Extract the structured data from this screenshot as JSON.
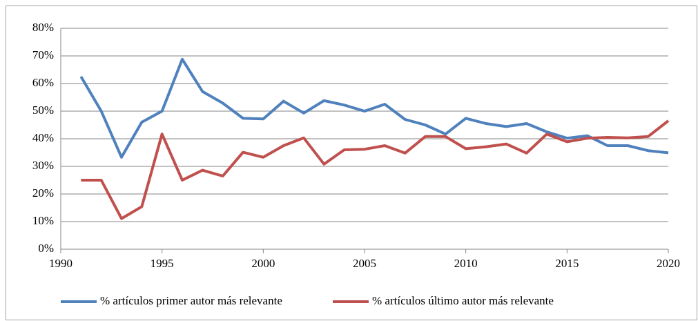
{
  "chart_data": {
    "type": "line",
    "x": [
      1991,
      1992,
      1993,
      1994,
      1995,
      1996,
      1997,
      1998,
      1999,
      2000,
      2001,
      2002,
      2003,
      2004,
      2005,
      2006,
      2007,
      2008,
      2009,
      2010,
      2011,
      2012,
      2013,
      2014,
      2015,
      2016,
      2017,
      2018,
      2019,
      2020
    ],
    "series": [
      {
        "name": "% artículos primer autor más relevante",
        "color": "#4f81bd",
        "values": [
          62.5,
          50,
          33.3,
          46,
          50,
          68.8,
          57.1,
          52.9,
          47.4,
          47.2,
          53.6,
          49.3,
          53.8,
          52.2,
          50,
          52.5,
          47,
          45,
          41.7,
          47.4,
          45.5,
          44.4,
          45.5,
          42.5,
          40.2,
          41.1,
          37.5,
          37.5,
          35.7,
          34.9
        ]
      },
      {
        "name": "% artículos último autor más relevante",
        "color": "#c0504d",
        "values": [
          25,
          25,
          11.1,
          15.4,
          41.7,
          25,
          28.6,
          26.5,
          35.1,
          33.3,
          37.5,
          40.3,
          30.8,
          36,
          36.2,
          37.5,
          34.8,
          40.8,
          40.8,
          36.4,
          37.1,
          38.1,
          34.8,
          41.7,
          38.9,
          40.2,
          40.5,
          40.3,
          40.8,
          46.5
        ]
      }
    ],
    "xlim": [
      1990,
      2020
    ],
    "xticks": [
      1990,
      1995,
      2000,
      2005,
      2010,
      2015,
      2020
    ],
    "ylim": [
      0,
      80
    ],
    "yticks": [
      {
        "value": 0,
        "label": "0%"
      },
      {
        "value": 10,
        "label": "10%"
      },
      {
        "value": 20,
        "label": "20%"
      },
      {
        "value": 30,
        "label": "30%"
      },
      {
        "value": 40,
        "label": "40%"
      },
      {
        "value": 50,
        "label": "50%"
      },
      {
        "value": 60,
        "label": "60%"
      },
      {
        "value": 70,
        "label": "70%"
      },
      {
        "value": 80,
        "label": "80%"
      }
    ],
    "grid": true,
    "legend": "bottom"
  }
}
